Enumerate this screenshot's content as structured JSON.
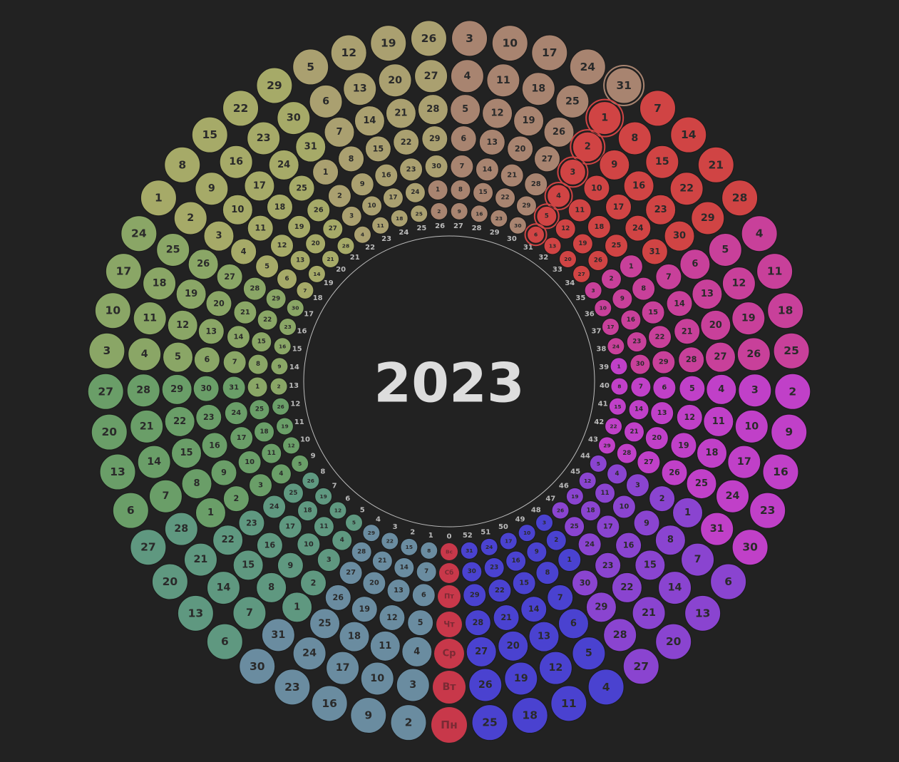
{
  "calendar": {
    "title": "2023",
    "weekdays": [
      "Пн",
      "Вт",
      "Ср",
      "Чт",
      "Пт",
      "Сб",
      "Вс"
    ],
    "week_numbers": [
      0,
      1,
      2,
      3,
      4,
      5,
      6,
      7,
      8,
      9,
      10,
      11,
      12,
      13,
      14,
      15,
      16,
      17,
      18,
      19,
      20,
      21,
      22,
      23,
      24,
      25,
      26,
      27,
      28,
      29,
      30,
      31,
      32,
      33,
      34,
      35,
      36,
      37,
      38,
      39,
      40,
      41,
      42,
      43,
      44,
      45,
      46,
      47,
      48,
      49,
      50,
      51,
      52
    ],
    "highlight_week": 31,
    "months": [
      {
        "color": "#6a8ca0",
        "first_day": 2,
        "days": [
          2,
          3,
          4,
          5,
          6,
          7,
          8,
          9,
          10,
          11,
          12,
          13,
          14,
          15,
          16,
          17,
          18,
          19,
          20,
          21,
          22,
          23,
          24,
          25,
          26,
          27,
          28,
          29,
          30,
          31
        ]
      },
      {
        "color": "#5f9880",
        "first_day": 1,
        "days": [
          1,
          2,
          3,
          4,
          5,
          6,
          7,
          8,
          9,
          10,
          11,
          12,
          13,
          14,
          15,
          16,
          17,
          18,
          19,
          20,
          21,
          22,
          23,
          24,
          25,
          26,
          27,
          28
        ]
      },
      {
        "color": "#6a9e68",
        "first_day": 1,
        "days": [
          1,
          2,
          3,
          4,
          5,
          6,
          7,
          8,
          9,
          10,
          11,
          12,
          13,
          14,
          15,
          16,
          17,
          18,
          19,
          20,
          21,
          22,
          23,
          24,
          25,
          26,
          27,
          28,
          29,
          30,
          31
        ]
      },
      {
        "color": "#8aa666",
        "first_day": 1,
        "days": [
          1,
          2,
          3,
          4,
          5,
          6,
          7,
          8,
          9,
          10,
          11,
          12,
          13,
          14,
          15,
          16,
          17,
          18,
          19,
          20,
          21,
          22,
          23,
          24,
          25,
          26,
          27,
          28,
          29,
          30
        ]
      },
      {
        "color": "#a6aa68",
        "first_day": 1,
        "days": [
          1,
          2,
          3,
          4,
          5,
          6,
          7,
          8,
          9,
          10,
          11,
          12,
          13,
          14,
          15,
          16,
          17,
          18,
          19,
          20,
          21,
          22,
          23,
          24,
          25,
          26,
          27,
          28,
          29,
          30,
          31
        ]
      },
      {
        "color": "#aaa070",
        "first_day": 1,
        "days": [
          1,
          2,
          3,
          4,
          5,
          6,
          7,
          8,
          9,
          10,
          11,
          12,
          13,
          14,
          15,
          16,
          17,
          18,
          19,
          20,
          21,
          22,
          23,
          24,
          25,
          26,
          27,
          28,
          29,
          30
        ]
      },
      {
        "color": "#a88470",
        "first_day": 1,
        "days": [
          1,
          2,
          3,
          4,
          5,
          6,
          7,
          8,
          9,
          10,
          11,
          12,
          13,
          14,
          15,
          16,
          17,
          18,
          19,
          20,
          21,
          22,
          23,
          24,
          25,
          26,
          27,
          28,
          29,
          30,
          31
        ]
      },
      {
        "color": "#d04444",
        "first_day": 1,
        "days": [
          1,
          2,
          3,
          4,
          5,
          6,
          7,
          8,
          9,
          10,
          11,
          12,
          13,
          14,
          15,
          16,
          17,
          18,
          19,
          20,
          21,
          22,
          23,
          24,
          25,
          26,
          27,
          28,
          29,
          30,
          31
        ]
      },
      {
        "color": "#c8409a",
        "first_day": 1,
        "days": [
          1,
          2,
          3,
          4,
          5,
          6,
          7,
          8,
          9,
          10,
          11,
          12,
          13,
          14,
          15,
          16,
          17,
          18,
          19,
          20,
          21,
          22,
          23,
          24,
          25,
          26,
          27,
          28,
          29,
          30
        ]
      },
      {
        "color": "#c040c8",
        "first_day": 1,
        "days": [
          1,
          2,
          3,
          4,
          5,
          6,
          7,
          8,
          9,
          10,
          11,
          12,
          13,
          14,
          15,
          16,
          17,
          18,
          19,
          20,
          21,
          22,
          23,
          24,
          25,
          26,
          27,
          28,
          29,
          30,
          31
        ]
      },
      {
        "color": "#8a44d0",
        "first_day": 1,
        "days": [
          1,
          2,
          3,
          4,
          5,
          6,
          7,
          8,
          9,
          10,
          11,
          12,
          13,
          14,
          15,
          16,
          17,
          18,
          19,
          20,
          21,
          22,
          23,
          24,
          25,
          26,
          27,
          28,
          29,
          30
        ]
      },
      {
        "color": "#4a42d0",
        "first_day": 1,
        "days": [
          1,
          2,
          3,
          4,
          5,
          6,
          7,
          8,
          9,
          10,
          11,
          12,
          13,
          14,
          15,
          16,
          17,
          18,
          19,
          20,
          21,
          22,
          23,
          24,
          25,
          26,
          27,
          28,
          29,
          30,
          31
        ]
      }
    ]
  }
}
